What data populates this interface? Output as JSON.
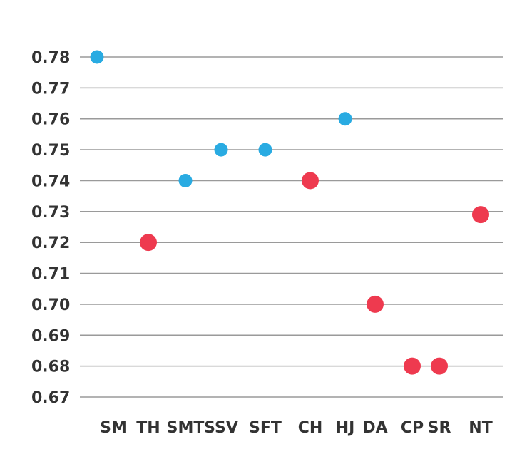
{
  "chart_data": {
    "type": "scatter",
    "categories": [
      "SM",
      "TH",
      "SMT",
      "SSV",
      "SFT",
      "CH",
      "HJ",
      "DA",
      "CP",
      "SR",
      "NT"
    ],
    "values": [
      0.78,
      0.72,
      0.74,
      0.75,
      0.75,
      0.74,
      0.76,
      0.7,
      0.68,
      0.68,
      0.729
    ],
    "point_colors": [
      "#29abe2",
      "#ee3a4f",
      "#29abe2",
      "#29abe2",
      "#29abe2",
      "#ee3a4f",
      "#29abe2",
      "#ee3a4f",
      "#ee3a4f",
      "#ee3a4f",
      "#ee3a4f"
    ],
    "point_sizes": [
      "small",
      "large",
      "small",
      "small",
      "small",
      "large",
      "small",
      "large",
      "large",
      "large",
      "large"
    ],
    "yticks": [
      0.67,
      0.68,
      0.69,
      0.7,
      0.71,
      0.72,
      0.73,
      0.74,
      0.75,
      0.76,
      0.77,
      0.78
    ],
    "ytick_labels": [
      "0.67",
      "0.68",
      "0.69",
      "0.70",
      "0.71",
      "0.72",
      "0.73",
      "0.74",
      "0.75",
      "0.76",
      "0.77",
      "0.78"
    ],
    "ylim": [
      0.67,
      0.78
    ],
    "grid": true,
    "gridline_color": "#9a9a9a",
    "title": "",
    "xlabel": "",
    "ylabel": ""
  }
}
